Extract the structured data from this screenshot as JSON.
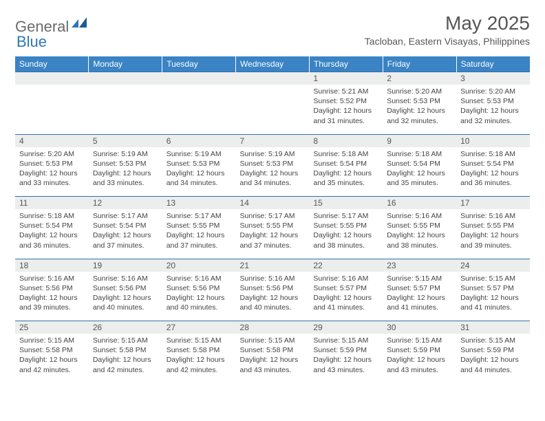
{
  "brand": {
    "text1": "General",
    "text2": "Blue"
  },
  "title": "May 2025",
  "location": "Tacloban, Eastern Visayas, Philippines",
  "colors": {
    "header_bg": "#3a83c4",
    "header_text": "#ffffff",
    "daynum_bg": "#eceded",
    "border": "#2f6faa",
    "title_color": "#565656",
    "logo_gray": "#6a6a6a",
    "logo_blue": "#2f77b5"
  },
  "typography": {
    "month_title_size": 28,
    "location_size": 14,
    "dayheader_size": 12,
    "body_size": 10.5
  },
  "day_headers": [
    "Sunday",
    "Monday",
    "Tuesday",
    "Wednesday",
    "Thursday",
    "Friday",
    "Saturday"
  ],
  "weeks": [
    [
      null,
      null,
      null,
      null,
      {
        "n": "1",
        "sr": "5:21 AM",
        "ss": "5:52 PM",
        "dl": "12 hours and 31 minutes."
      },
      {
        "n": "2",
        "sr": "5:20 AM",
        "ss": "5:53 PM",
        "dl": "12 hours and 32 minutes."
      },
      {
        "n": "3",
        "sr": "5:20 AM",
        "ss": "5:53 PM",
        "dl": "12 hours and 32 minutes."
      }
    ],
    [
      {
        "n": "4",
        "sr": "5:20 AM",
        "ss": "5:53 PM",
        "dl": "12 hours and 33 minutes."
      },
      {
        "n": "5",
        "sr": "5:19 AM",
        "ss": "5:53 PM",
        "dl": "12 hours and 33 minutes."
      },
      {
        "n": "6",
        "sr": "5:19 AM",
        "ss": "5:53 PM",
        "dl": "12 hours and 34 minutes."
      },
      {
        "n": "7",
        "sr": "5:19 AM",
        "ss": "5:53 PM",
        "dl": "12 hours and 34 minutes."
      },
      {
        "n": "8",
        "sr": "5:18 AM",
        "ss": "5:54 PM",
        "dl": "12 hours and 35 minutes."
      },
      {
        "n": "9",
        "sr": "5:18 AM",
        "ss": "5:54 PM",
        "dl": "12 hours and 35 minutes."
      },
      {
        "n": "10",
        "sr": "5:18 AM",
        "ss": "5:54 PM",
        "dl": "12 hours and 36 minutes."
      }
    ],
    [
      {
        "n": "11",
        "sr": "5:18 AM",
        "ss": "5:54 PM",
        "dl": "12 hours and 36 minutes."
      },
      {
        "n": "12",
        "sr": "5:17 AM",
        "ss": "5:54 PM",
        "dl": "12 hours and 37 minutes."
      },
      {
        "n": "13",
        "sr": "5:17 AM",
        "ss": "5:55 PM",
        "dl": "12 hours and 37 minutes."
      },
      {
        "n": "14",
        "sr": "5:17 AM",
        "ss": "5:55 PM",
        "dl": "12 hours and 37 minutes."
      },
      {
        "n": "15",
        "sr": "5:17 AM",
        "ss": "5:55 PM",
        "dl": "12 hours and 38 minutes."
      },
      {
        "n": "16",
        "sr": "5:16 AM",
        "ss": "5:55 PM",
        "dl": "12 hours and 38 minutes."
      },
      {
        "n": "17",
        "sr": "5:16 AM",
        "ss": "5:55 PM",
        "dl": "12 hours and 39 minutes."
      }
    ],
    [
      {
        "n": "18",
        "sr": "5:16 AM",
        "ss": "5:56 PM",
        "dl": "12 hours and 39 minutes."
      },
      {
        "n": "19",
        "sr": "5:16 AM",
        "ss": "5:56 PM",
        "dl": "12 hours and 40 minutes."
      },
      {
        "n": "20",
        "sr": "5:16 AM",
        "ss": "5:56 PM",
        "dl": "12 hours and 40 minutes."
      },
      {
        "n": "21",
        "sr": "5:16 AM",
        "ss": "5:56 PM",
        "dl": "12 hours and 40 minutes."
      },
      {
        "n": "22",
        "sr": "5:16 AM",
        "ss": "5:57 PM",
        "dl": "12 hours and 41 minutes."
      },
      {
        "n": "23",
        "sr": "5:15 AM",
        "ss": "5:57 PM",
        "dl": "12 hours and 41 minutes."
      },
      {
        "n": "24",
        "sr": "5:15 AM",
        "ss": "5:57 PM",
        "dl": "12 hours and 41 minutes."
      }
    ],
    [
      {
        "n": "25",
        "sr": "5:15 AM",
        "ss": "5:58 PM",
        "dl": "12 hours and 42 minutes."
      },
      {
        "n": "26",
        "sr": "5:15 AM",
        "ss": "5:58 PM",
        "dl": "12 hours and 42 minutes."
      },
      {
        "n": "27",
        "sr": "5:15 AM",
        "ss": "5:58 PM",
        "dl": "12 hours and 42 minutes."
      },
      {
        "n": "28",
        "sr": "5:15 AM",
        "ss": "5:58 PM",
        "dl": "12 hours and 43 minutes."
      },
      {
        "n": "29",
        "sr": "5:15 AM",
        "ss": "5:59 PM",
        "dl": "12 hours and 43 minutes."
      },
      {
        "n": "30",
        "sr": "5:15 AM",
        "ss": "5:59 PM",
        "dl": "12 hours and 43 minutes."
      },
      {
        "n": "31",
        "sr": "5:15 AM",
        "ss": "5:59 PM",
        "dl": "12 hours and 44 minutes."
      }
    ]
  ],
  "labels": {
    "sunrise": "Sunrise: ",
    "sunset": "Sunset: ",
    "daylight": "Daylight: "
  }
}
